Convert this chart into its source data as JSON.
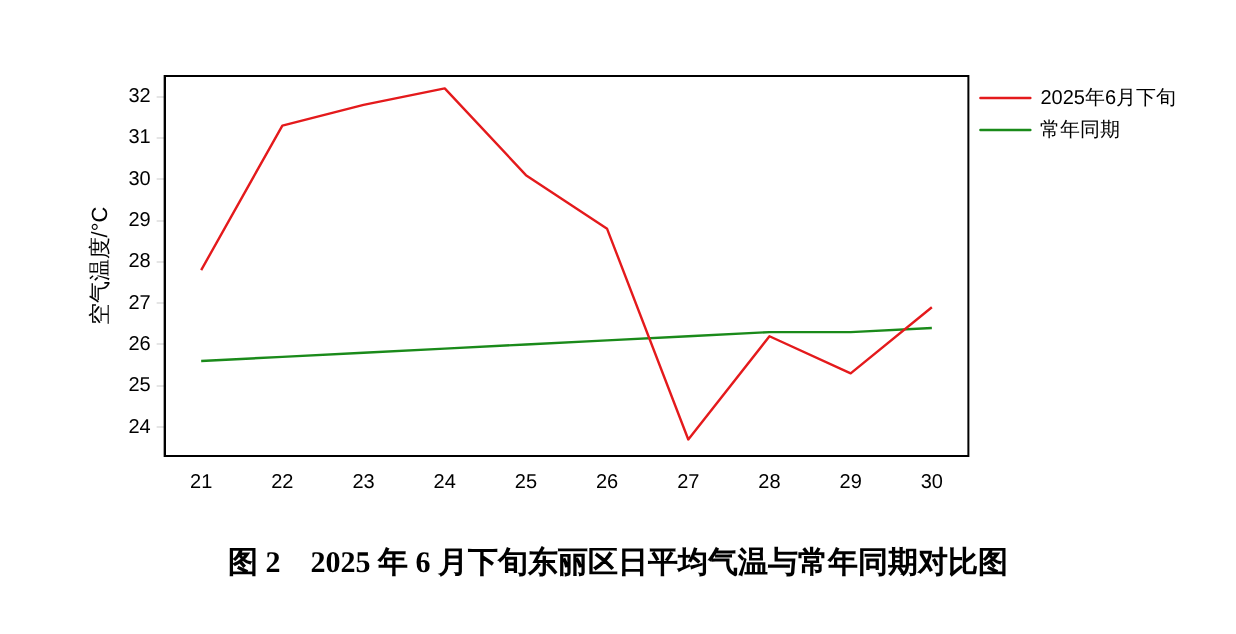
{
  "chart_data": {
    "type": "line",
    "title": "图 2　2025 年 6 月下旬东丽区日平均气温与常年同期对比图",
    "ylabel": "空气温度/°C",
    "x": [
      21,
      22,
      23,
      24,
      25,
      26,
      27,
      28,
      29,
      30
    ],
    "xlim": [
      20.55,
      30.45
    ],
    "xticks": [
      21,
      22,
      23,
      24,
      25,
      26,
      27,
      28,
      29,
      30
    ],
    "ylim": [
      23.3,
      32.5
    ],
    "yticks": [
      24,
      25,
      26,
      27,
      28,
      29,
      30,
      31,
      32
    ],
    "series": [
      {
        "name": "2025年6月下旬",
        "color": "#e41a1c",
        "values": [
          27.8,
          31.3,
          31.8,
          32.2,
          30.1,
          28.8,
          23.7,
          26.2,
          25.3,
          26.9
        ]
      },
      {
        "name": "常年同期",
        "color": "#1a8a1a",
        "values": [
          25.6,
          25.7,
          25.8,
          25.9,
          26.0,
          26.1,
          26.2,
          26.3,
          26.3,
          26.4
        ]
      }
    ],
    "legend": "top right",
    "grid": false,
    "marker": "none",
    "line_style": "solid"
  }
}
